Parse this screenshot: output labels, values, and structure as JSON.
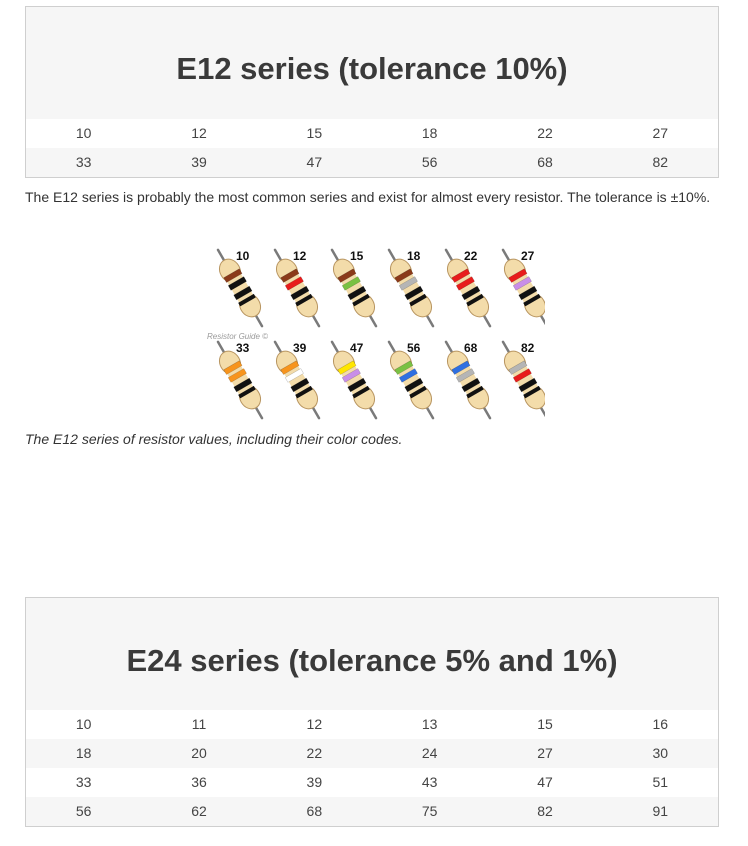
{
  "e12": {
    "title": "E12 series (tolerance 10%)",
    "rows": [
      [
        "10",
        "12",
        "15",
        "18",
        "22",
        "27"
      ],
      [
        "33",
        "39",
        "47",
        "56",
        "68",
        "82"
      ]
    ]
  },
  "description": "The E12 series is probably the most common series and exist for almost every resistor. The tolerance is ±10%.",
  "figure": {
    "watermark": "Resistor Guide ©",
    "resistors": [
      {
        "label": "10",
        "bands": [
          "#8b3a1a",
          "#111111",
          "#111111"
        ]
      },
      {
        "label": "12",
        "bands": [
          "#8b3a1a",
          "#e81c1c",
          "#111111"
        ]
      },
      {
        "label": "15",
        "bands": [
          "#8b3a1a",
          "#7ac143",
          "#111111"
        ]
      },
      {
        "label": "18",
        "bands": [
          "#8b3a1a",
          "#b5b5b5",
          "#111111"
        ]
      },
      {
        "label": "22",
        "bands": [
          "#e81c1c",
          "#e81c1c",
          "#111111"
        ]
      },
      {
        "label": "27",
        "bands": [
          "#e81c1c",
          "#c98ee8",
          "#111111"
        ]
      },
      {
        "label": "33",
        "bands": [
          "#f7941d",
          "#f7941d",
          "#111111"
        ]
      },
      {
        "label": "39",
        "bands": [
          "#f7941d",
          "#ffffff",
          "#111111"
        ]
      },
      {
        "label": "47",
        "bands": [
          "#ffe600",
          "#c98ee8",
          "#111111"
        ]
      },
      {
        "label": "56",
        "bands": [
          "#7ac143",
          "#2f6fe0",
          "#111111"
        ]
      },
      {
        "label": "68",
        "bands": [
          "#2f6fe0",
          "#b5b5b5",
          "#111111"
        ]
      },
      {
        "label": "82",
        "bands": [
          "#b5b5b5",
          "#e81c1c",
          "#111111"
        ]
      }
    ]
  },
  "caption": "The E12 series of resistor values, including their color codes.",
  "e24": {
    "title": "E24 series (tolerance 5% and 1%)",
    "rows": [
      [
        "10",
        "11",
        "12",
        "13",
        "15",
        "16"
      ],
      [
        "18",
        "20",
        "22",
        "24",
        "27",
        "30"
      ],
      [
        "33",
        "36",
        "39",
        "43",
        "47",
        "51"
      ],
      [
        "56",
        "62",
        "68",
        "75",
        "82",
        "91"
      ]
    ]
  }
}
